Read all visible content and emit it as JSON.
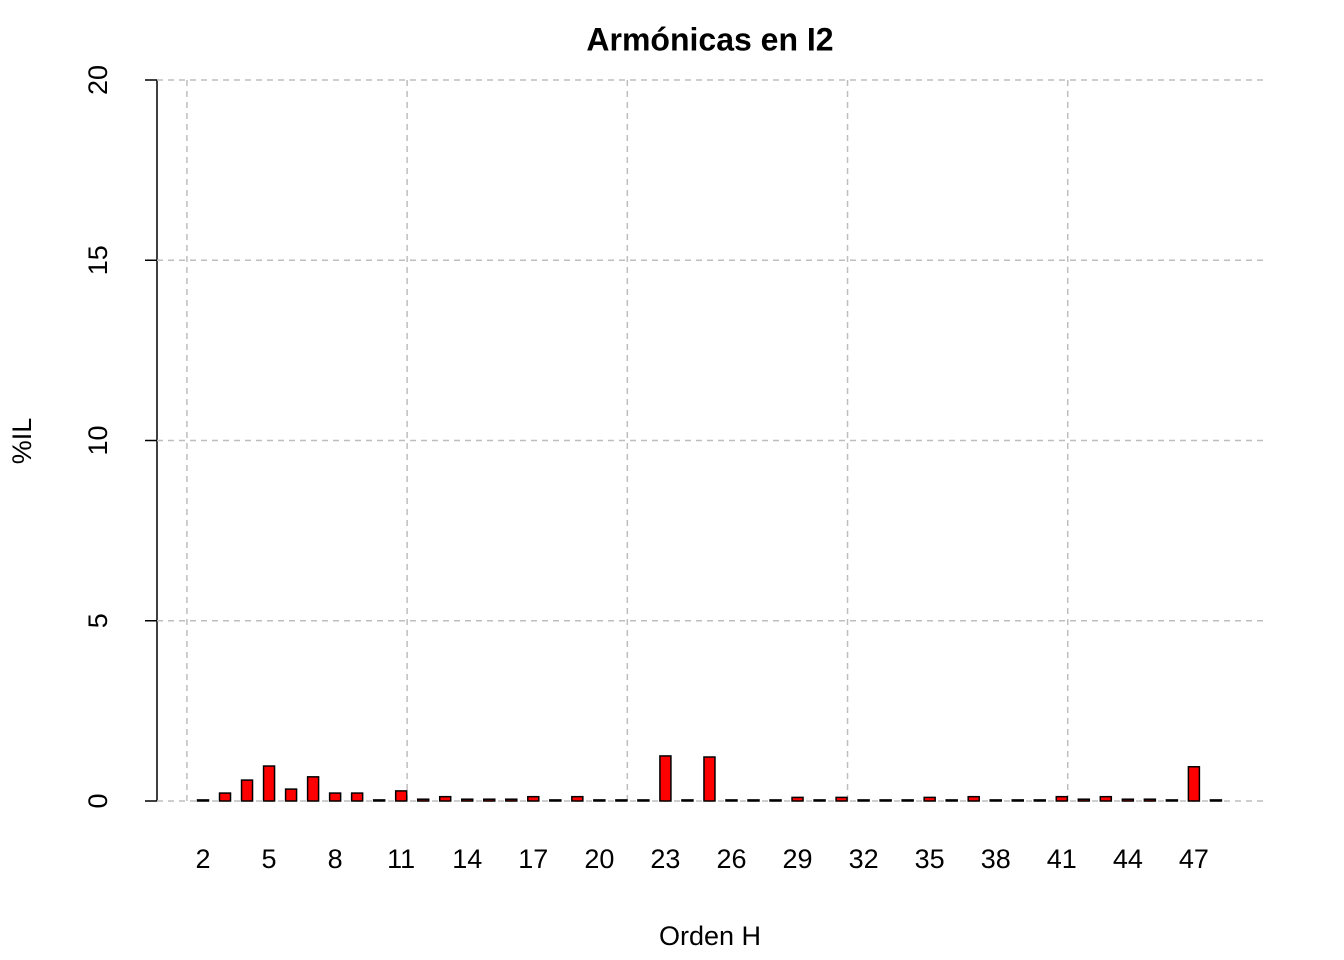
{
  "chart_data": {
    "type": "bar",
    "title": "Armónicas en I2",
    "x_label": "Orden H",
    "y_label": "%IL",
    "categories": [
      2,
      null,
      null,
      5,
      null,
      null,
      8,
      null,
      null,
      11,
      null,
      null,
      14,
      null,
      null,
      17,
      null,
      null,
      20,
      null,
      null,
      23,
      null,
      null,
      26,
      null,
      null,
      29,
      null,
      null,
      32,
      null,
      null,
      35,
      null,
      null,
      38,
      null,
      null,
      41,
      null,
      null,
      44,
      null,
      null,
      47,
      null
    ],
    "values": [
      0.03,
      0.22,
      0.58,
      0.97,
      0.33,
      0.67,
      0.22,
      0.22,
      0.03,
      0.28,
      0.05,
      0.12,
      0.05,
      0.05,
      0.05,
      0.12,
      0.03,
      0.12,
      0.03,
      0.03,
      0.03,
      1.25,
      0.03,
      1.22,
      0.03,
      0.03,
      0.03,
      0.1,
      0.03,
      0.1,
      0.03,
      0.03,
      0.03,
      0.1,
      0.03,
      0.12,
      0.03,
      0.03,
      0.03,
      0.12,
      0.05,
      0.12,
      0.05,
      0.05,
      0.03,
      0.95,
      0.03
    ],
    "color": "#ff0000",
    "ylim": [
      0,
      20
    ],
    "yticks": [
      0,
      5,
      10,
      15,
      20
    ],
    "grid": true
  }
}
